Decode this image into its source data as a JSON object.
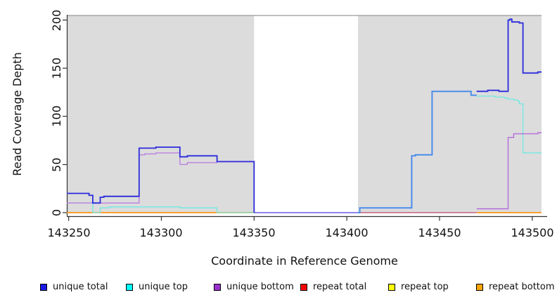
{
  "figure": {
    "y_axis": {
      "title": "Read Coverage Depth",
      "tick_labels": [
        "0",
        "50",
        "100",
        "150",
        "200"
      ]
    },
    "x_axis": {
      "title": "Coordinate in Reference Genome",
      "tick_labels": [
        "143250",
        "143300",
        "143350",
        "143400",
        "143450",
        "143500"
      ]
    }
  },
  "legend": {
    "items": [
      {
        "label": "unique total",
        "color": "#1A1AE6"
      },
      {
        "label": "unique top",
        "color": "#00FFFF"
      },
      {
        "label": "unique bottom",
        "color": "#9932CC"
      },
      {
        "label": "repeat total",
        "color": "#FF0000"
      },
      {
        "label": "repeat top",
        "color": "#FFFF00"
      },
      {
        "label": "repeat bottom",
        "color": "#FFA500"
      }
    ]
  },
  "chart_data": {
    "type": "line",
    "step": "after",
    "title": "",
    "xlabel": "Coordinate in Reference Genome",
    "ylabel": "Read Coverage Depth",
    "x_range": [
      143249,
      143505
    ],
    "y_range": [
      0,
      205
    ],
    "x_ticks": [
      143250,
      143300,
      143350,
      143400,
      143450,
      143500
    ],
    "y_ticks": [
      0,
      50,
      100,
      150,
      200
    ],
    "grid": false,
    "legend_position": "bottom",
    "shaded_regions": {
      "color": "#DCDCDC",
      "top_value": 204,
      "top_line_color": "#999999",
      "x_spans": [
        [
          143249,
          143350
        ],
        [
          143406,
          143505
        ]
      ]
    },
    "coverage_gap": [
      143350,
      143406
    ],
    "series": [
      {
        "name": "unique total",
        "points": [
          [
            143249,
            20
          ],
          [
            143261,
            18
          ],
          [
            143263,
            10
          ],
          [
            143267,
            16
          ],
          [
            143269,
            17
          ],
          [
            143288,
            67
          ],
          [
            143297,
            68
          ],
          [
            143310,
            58
          ],
          [
            143314,
            59
          ],
          [
            143330,
            53
          ],
          [
            143350,
            0
          ],
          [
            143407,
            5
          ],
          [
            143435,
            59
          ],
          [
            143437,
            60
          ],
          [
            143446,
            126
          ],
          [
            143467,
            122
          ],
          [
            143470,
            126
          ],
          [
            143476,
            127
          ],
          [
            143482,
            126
          ],
          [
            143487,
            200
          ],
          [
            143488,
            201
          ],
          [
            143489,
            198
          ],
          [
            143493,
            197
          ],
          [
            143495,
            145
          ],
          [
            143503,
            146
          ],
          [
            143505,
            146
          ]
        ],
        "render": [
          {
            "color": "#2B2BDC",
            "width": 1.8,
            "points": [
              [
                143249,
                20
              ],
              [
                143261,
                18
              ],
              [
                143263,
                10
              ],
              [
                143267,
                16
              ],
              [
                143269,
                17
              ],
              [
                143288,
                67
              ],
              [
                143297,
                68
              ],
              [
                143310,
                58
              ],
              [
                143314,
                59
              ],
              [
                143330,
                53
              ],
              [
                143350,
                0
              ]
            ]
          },
          {
            "color": "#4C8DEB",
            "width": 2.0,
            "points": [
              [
                143406,
                0
              ],
              [
                143407,
                5
              ],
              [
                143435,
                59
              ],
              [
                143437,
                60
              ],
              [
                143446,
                126
              ],
              [
                143467,
                122
              ],
              [
                143470,
                122
              ]
            ]
          },
          {
            "color": "#2B2BDC",
            "width": 1.8,
            "points": [
              [
                143470,
                126
              ],
              [
                143476,
                127
              ],
              [
                143482,
                126
              ],
              [
                143487,
                200
              ],
              [
                143488,
                201
              ],
              [
                143489,
                198
              ],
              [
                143493,
                197
              ],
              [
                143495,
                145
              ],
              [
                143503,
                146
              ],
              [
                143505,
                146
              ]
            ]
          }
        ]
      },
      {
        "name": "unique top",
        "points": [
          [
            143249,
            10
          ],
          [
            143263,
            0
          ],
          [
            143267,
            5
          ],
          [
            143272,
            6
          ],
          [
            143310,
            5
          ],
          [
            143330,
            0
          ],
          [
            143407,
            5
          ],
          [
            143435,
            59
          ],
          [
            143437,
            60
          ],
          [
            143446,
            126
          ],
          [
            143467,
            122
          ],
          [
            143470,
            121
          ],
          [
            143480,
            120
          ],
          [
            143485,
            119
          ],
          [
            143487,
            118
          ],
          [
            143490,
            117
          ],
          [
            143492,
            116
          ],
          [
            143493,
            113
          ],
          [
            143495,
            62
          ],
          [
            143505,
            62
          ]
        ],
        "render": [
          {
            "color": "#6FE9E2",
            "width": 1.3,
            "points": [
              [
                143249,
                10
              ],
              [
                143263,
                0
              ],
              [
                143267,
                5
              ],
              [
                143272,
                6
              ],
              [
                143310,
                5
              ],
              [
                143330,
                0
              ],
              [
                143350,
                0
              ]
            ]
          },
          {
            "color": "#6FE9E2",
            "width": 1.3,
            "points": [
              [
                143470,
                121
              ],
              [
                143480,
                120
              ],
              [
                143485,
                119
              ],
              [
                143487,
                118
              ],
              [
                143490,
                117
              ],
              [
                143492,
                116
              ],
              [
                143493,
                113
              ],
              [
                143495,
                62
              ],
              [
                143505,
                62
              ]
            ]
          }
        ]
      },
      {
        "name": "unique bottom",
        "points": [
          [
            143249,
            10
          ],
          [
            143288,
            60
          ],
          [
            143291,
            61
          ],
          [
            143297,
            62
          ],
          [
            143310,
            50
          ],
          [
            143314,
            52
          ],
          [
            143330,
            53
          ],
          [
            143350,
            0
          ],
          [
            143470,
            4
          ],
          [
            143487,
            78
          ],
          [
            143490,
            82
          ],
          [
            143503,
            83
          ],
          [
            143505,
            83
          ]
        ],
        "render": [
          {
            "color": "#BB80E0",
            "width": 1.4,
            "points": [
              [
                143249,
                10
              ],
              [
                143288,
                60
              ],
              [
                143291,
                61
              ],
              [
                143297,
                62
              ],
              [
                143310,
                50
              ],
              [
                143314,
                52
              ],
              [
                143330,
                53
              ],
              [
                143350,
                0
              ]
            ]
          },
          {
            "color": "#6A5CE8",
            "width": 1.6,
            "points": [
              [
                143350,
                0
              ],
              [
                143406,
                0
              ]
            ]
          },
          {
            "color": "#B46BDC",
            "width": 1.4,
            "points": [
              [
                143470,
                4
              ],
              [
                143487,
                78
              ],
              [
                143490,
                82
              ],
              [
                143503,
                83
              ],
              [
                143505,
                83
              ]
            ]
          }
        ]
      },
      {
        "name": "repeat total",
        "points": [
          [
            143249,
            0
          ],
          [
            143505,
            0
          ]
        ],
        "render": [
          {
            "color": "#C4607E",
            "width": 1.4,
            "points": [
              [
                143406,
                0
              ],
              [
                143470,
                0
              ]
            ]
          }
        ]
      },
      {
        "name": "repeat top",
        "points": [
          [
            143249,
            0
          ],
          [
            143505,
            0
          ]
        ],
        "render": []
      },
      {
        "name": "repeat bottom",
        "points": [
          [
            143249,
            0
          ],
          [
            143505,
            0
          ]
        ],
        "render": [
          {
            "color": "#FF9412",
            "width": 1.8,
            "points": [
              [
                143249,
                0
              ],
              [
                143350,
                0
              ]
            ]
          },
          {
            "color": "#FF9412",
            "width": 1.8,
            "points": [
              [
                143470,
                0
              ],
              [
                143505,
                0
              ]
            ]
          }
        ]
      }
    ],
    "draw_order": [
      "repeat bottom",
      "repeat top",
      "repeat total",
      "unique top",
      "unique bottom",
      "unique total"
    ]
  }
}
